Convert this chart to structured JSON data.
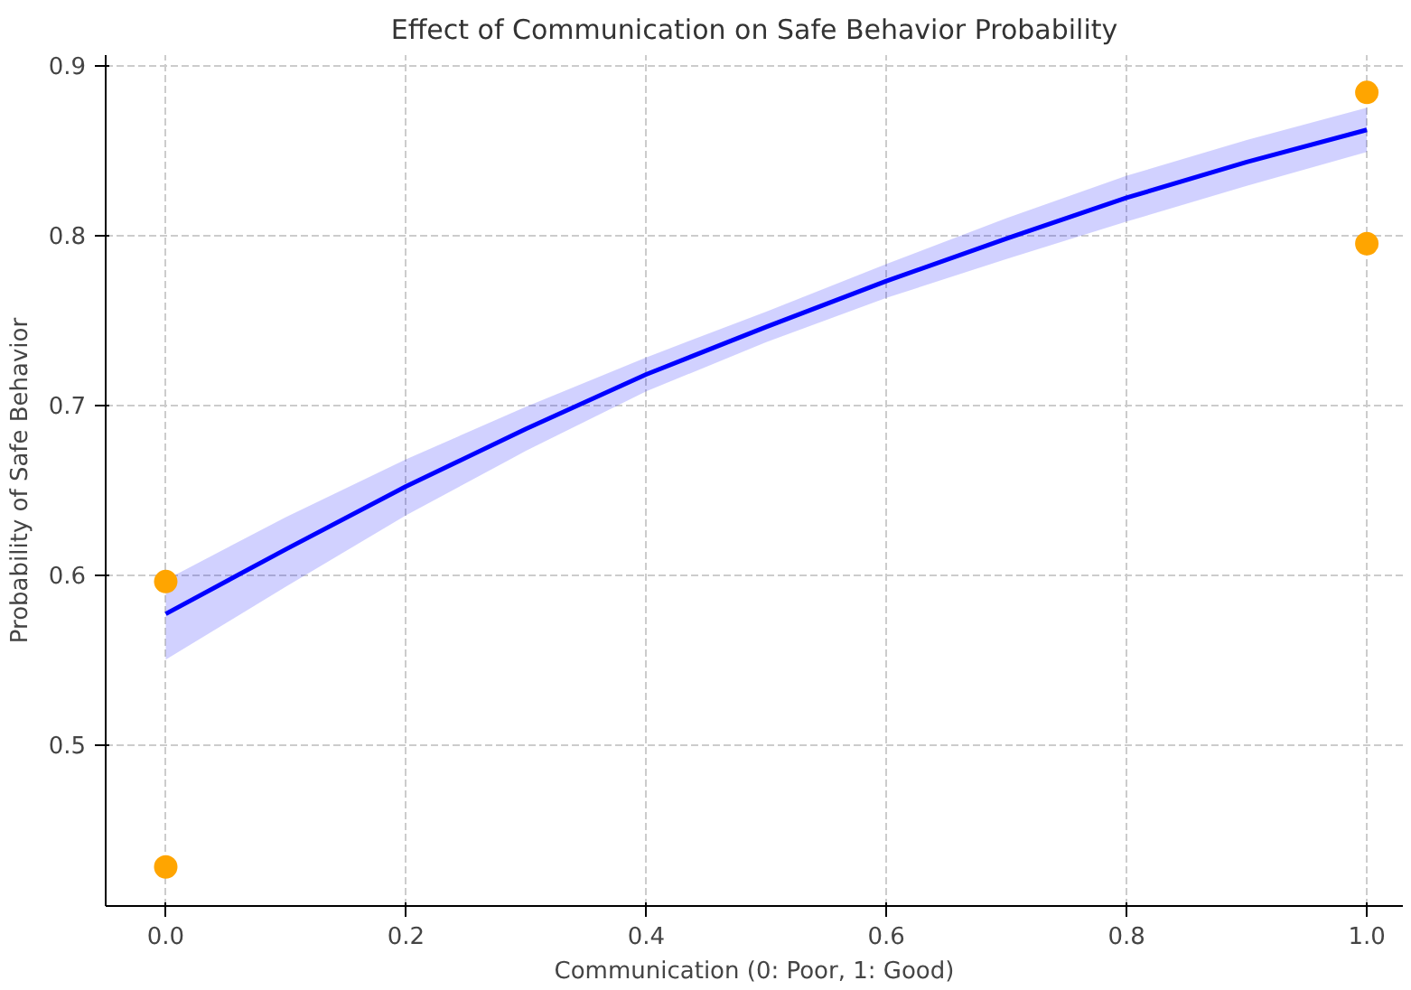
{
  "chart_data": {
    "type": "line",
    "title": "Effect of Communication on Safe Behavior Probability",
    "xlabel": "Communication (0: Poor, 1: Good)",
    "ylabel": "Probability of Safe Behavior",
    "xlim": [
      -0.05,
      1.03
    ],
    "ylim": [
      0.405,
      0.906
    ],
    "xticks": [
      {
        "value": 0,
        "label": "0.0"
      },
      0.2,
      0.4,
      0.6,
      0.8,
      {
        "value": 1,
        "label": "1.0"
      }
    ],
    "yticks": [
      0.5,
      0.6,
      0.7,
      0.8,
      0.9
    ],
    "grid": true,
    "series": [
      {
        "color": "#0000ff",
        "x": [
          0,
          0.1,
          0.2,
          0.3,
          0.4,
          0.5,
          0.6,
          0.7,
          0.8,
          0.9,
          1.0
        ],
        "values": [
          0.577,
          0.615,
          0.652,
          0.686,
          0.718,
          0.746,
          0.773,
          0.798,
          0.822,
          0.843,
          0.862
        ],
        "lower": [
          0.55,
          0.593,
          0.635,
          0.673,
          0.708,
          0.737,
          0.763,
          0.786,
          0.808,
          0.829,
          0.849
        ],
        "upper": [
          0.597,
          0.634,
          0.668,
          0.699,
          0.728,
          0.755,
          0.783,
          0.81,
          0.835,
          0.856,
          0.875
        ]
      },
      {
        "type": "scatter",
        "color": "#ffa500",
        "marker": "circle",
        "x": [
          0,
          0,
          1,
          1
        ],
        "values": [
          0.596,
          0.428,
          0.884,
          0.795
        ]
      }
    ]
  }
}
